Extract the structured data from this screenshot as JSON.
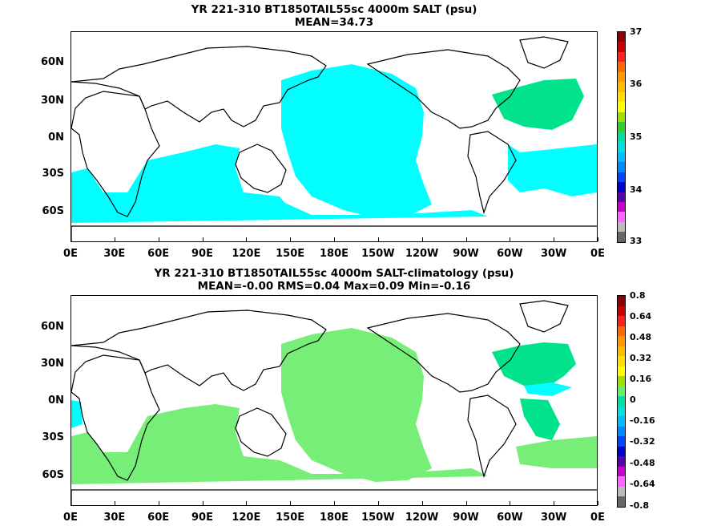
{
  "panels": [
    {
      "title_line1": "YR 221-310 BT1850TAIL55sc 4000m SALT (psu)",
      "title_line2": "MEAN=34.73",
      "colorbar_labels": [
        "37",
        "36",
        "35",
        "34",
        "33"
      ],
      "colorbar_colors": [
        "#8b0000",
        "#cc0000",
        "#ff2020",
        "#ff6a00",
        "#ff9900",
        "#ffbb00",
        "#ffe000",
        "#ffff00",
        "#a0e000",
        "#33cc33",
        "#00e0a0",
        "#00e0e0",
        "#00bbff",
        "#0088ff",
        "#0044ff",
        "#0000cc",
        "#5500aa",
        "#cc00cc",
        "#ff66ff",
        "#bbbbbb",
        "#666666"
      ],
      "fill_color": "#00ffff",
      "fill_color_2": "#00e28c"
    },
    {
      "title_line1": "YR 221-310 BT1850TAIL55sc 4000m SALT-climatology (psu)",
      "title_line2": "MEAN=-0.00   RMS=0.04   Max=0.09   Min=-0.16",
      "colorbar_labels": [
        "0.8",
        "0.64",
        "0.48",
        "0.32",
        "0.16",
        "0",
        "-0.16",
        "-0.32",
        "-0.48",
        "-0.64",
        "-0.8"
      ],
      "colorbar_colors": [
        "#8b0000",
        "#cc0000",
        "#ff2020",
        "#ff6a00",
        "#ff9900",
        "#ffbb00",
        "#ffe000",
        "#ffff00",
        "#a0e000",
        "#66ee66",
        "#00e0a0",
        "#00e0e0",
        "#00bbff",
        "#0088ff",
        "#0044ff",
        "#0000cc",
        "#5500aa",
        "#cc00cc",
        "#ff66ff",
        "#bbbbbb",
        "#666666"
      ],
      "fill_color": "#77ee77",
      "fill_color_2": "#00e28c",
      "fill_color_3": "#00ffff"
    }
  ],
  "y_ticks": [
    "60N",
    "30N",
    "0N",
    "30S",
    "60S"
  ],
  "x_ticks": [
    "0E",
    "30E",
    "60E",
    "90E",
    "120E",
    "150E",
    "180E",
    "150W",
    "120W",
    "90W",
    "60W",
    "30W",
    "0E"
  ],
  "chart_data": [
    {
      "type": "heatmap",
      "title": "YR 221-310 BT1850TAIL55sc 4000m SALT (psu)",
      "subtitle": "MEAN=34.73",
      "x_ticks": [
        "0E",
        "30E",
        "60E",
        "90E",
        "120E",
        "150E",
        "180E",
        "150W",
        "120W",
        "90W",
        "60W",
        "30W",
        "0E"
      ],
      "y_ticks": [
        "60N",
        "30N",
        "0N",
        "30S",
        "60S"
      ],
      "colorbar": {
        "min": 33,
        "max": 37,
        "labels": [
          37,
          36,
          35,
          34,
          33
        ]
      },
      "grid": false
    },
    {
      "type": "heatmap",
      "title": "YR 221-310 BT1850TAIL55sc 4000m SALT-climatology (psu)",
      "subtitle": "MEAN=-0.00   RMS=0.04   Max=0.09   Min=-0.16",
      "x_ticks": [
        "0E",
        "30E",
        "60E",
        "90E",
        "120E",
        "150E",
        "180E",
        "150W",
        "120W",
        "90W",
        "60W",
        "30W",
        "0E"
      ],
      "y_ticks": [
        "60N",
        "30N",
        "0N",
        "30S",
        "60S"
      ],
      "colorbar": {
        "min": -0.8,
        "max": 0.8,
        "labels": [
          0.8,
          0.64,
          0.48,
          0.32,
          0.16,
          0,
          -0.16,
          -0.32,
          -0.48,
          -0.64,
          -0.8
        ]
      },
      "grid": false
    }
  ]
}
